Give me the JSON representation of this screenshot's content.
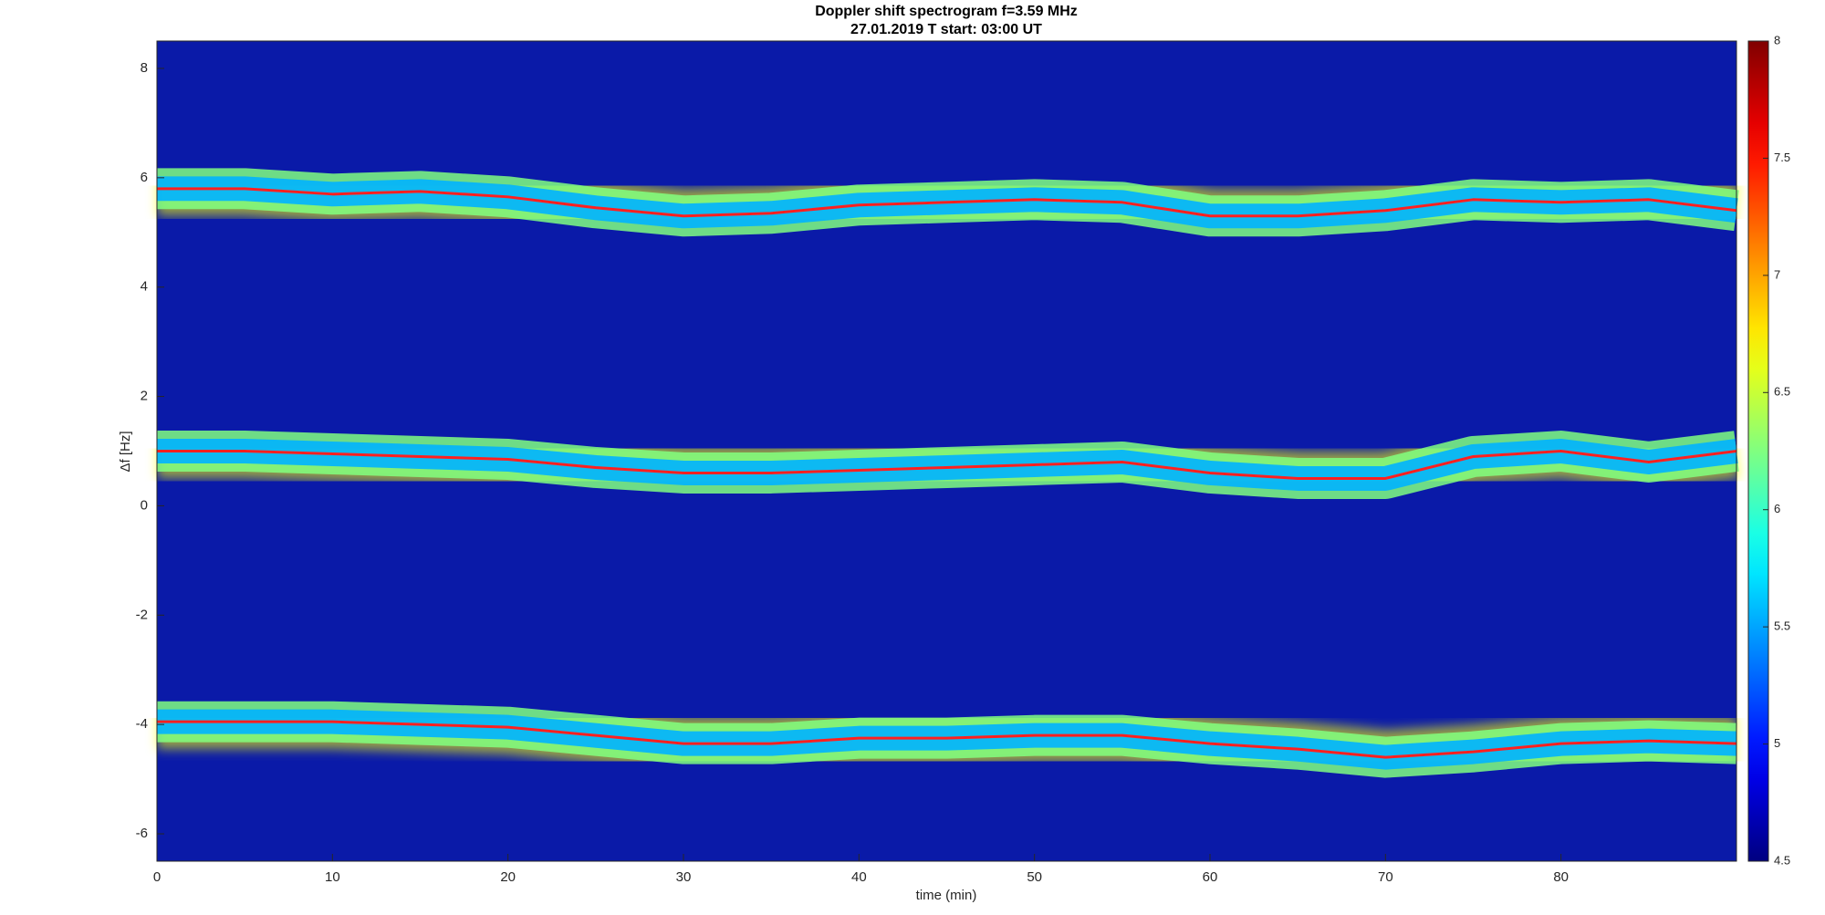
{
  "chart_data": {
    "type": "spectrogram",
    "title": "Doppler shift spectrogram f=3.59 MHz",
    "subtitle": "27.01.2019   T start: 03:00 UT",
    "x_label": "time (min)",
    "y_label": "Δf [Hz]",
    "x": [
      0,
      5,
      10,
      15,
      20,
      25,
      30,
      35,
      40,
      45,
      50,
      55,
      60,
      65,
      70,
      75,
      80,
      85,
      90
    ],
    "series": [
      {
        "color": "#ff2020",
        "values": [
          5.8,
          5.8,
          5.7,
          5.75,
          5.65,
          5.45,
          5.3,
          5.35,
          5.5,
          5.55,
          5.6,
          5.55,
          5.3,
          5.3,
          5.4,
          5.6,
          5.55,
          5.6,
          5.4
        ]
      },
      {
        "color": "#ff2020",
        "values": [
          1.0,
          1.0,
          0.95,
          0.9,
          0.85,
          0.7,
          0.6,
          0.6,
          0.65,
          0.7,
          0.75,
          0.8,
          0.6,
          0.5,
          0.5,
          0.9,
          1.0,
          0.8,
          1.0
        ]
      },
      {
        "color": "#ff2020",
        "values": [
          -3.95,
          -3.95,
          -3.95,
          -4.0,
          -4.05,
          -4.2,
          -4.35,
          -4.35,
          -4.25,
          -4.25,
          -4.2,
          -4.2,
          -4.35,
          -4.45,
          -4.6,
          -4.5,
          -4.35,
          -4.3,
          -4.35
        ]
      }
    ],
    "xlim": [
      0,
      90
    ],
    "xticks": [
      0,
      10,
      20,
      30,
      40,
      50,
      60,
      70,
      80
    ],
    "ylim": [
      -6.5,
      8.5
    ],
    "yticks": [
      -6,
      -4,
      -2,
      0,
      2,
      4,
      6,
      8
    ],
    "colormap": "jet",
    "clim": [
      4.5,
      8
    ],
    "cticks": [
      4.5,
      5,
      5.5,
      6,
      6.5,
      7,
      7.5,
      8
    ]
  }
}
